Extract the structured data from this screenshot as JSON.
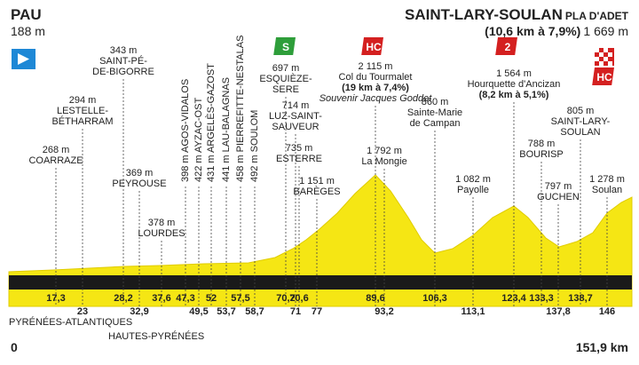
{
  "header": {
    "start": "PAU",
    "start_alt": "188 m",
    "finish": "SAINT-LARY-SOULAN",
    "finish_sub": "PLA D'ADET",
    "finish_climb": "(10,6 km à 7,9%)",
    "finish_alt": "1 669 m"
  },
  "badges": [
    "S",
    "HC",
    "2",
    "HC"
  ],
  "waypoints": [
    {
      "altitude": "268 m",
      "lines": [
        "COARRAZE"
      ],
      "km": "17,3"
    },
    {
      "altitude": "294 m",
      "lines": [
        "LESTELLE-",
        "BÉTHARRAM"
      ],
      "km": "23"
    },
    {
      "altitude": "343 m",
      "lines": [
        "SAINT-PÉ-",
        "DE-BIGORRE"
      ],
      "km": "28,2"
    },
    {
      "altitude": "369 m",
      "lines": [
        "PEYROUSE"
      ],
      "km": "32,9"
    },
    {
      "altitude": "378 m",
      "lines": [
        "LOURDES"
      ],
      "km": "37,6"
    },
    {
      "altitude": "398 m",
      "lines": [
        "AGOS-VIDALOS"
      ],
      "km": "47,3"
    },
    {
      "altitude": "422 m",
      "lines": [
        "AYZAC-OST"
      ],
      "km": "49,5"
    },
    {
      "altitude": "431 m",
      "lines": [
        "ARGELÈS-GAZOST"
      ],
      "km": "52"
    },
    {
      "altitude": "441 m",
      "lines": [
        "LAU-BALAGNAS"
      ],
      "km": "53,7"
    },
    {
      "altitude": "458 m",
      "lines": [
        "PIERREFITTE-NESTALAS"
      ],
      "km": "57,5"
    },
    {
      "altitude": "492 m",
      "lines": [
        "SOULOM"
      ],
      "km": "58,7"
    },
    {
      "altitude": "697 m",
      "lines": [
        "ESQUIÈZE-",
        "SERE"
      ],
      "km": "70,2"
    },
    {
      "altitude": "714 m",
      "lines": [
        "LUZ-SAINT-",
        "SAUVEUR"
      ],
      "km": "71"
    },
    {
      "altitude": "735 m",
      "lines": [
        "ESTERRE"
      ],
      "km": "70,6"
    },
    {
      "altitude": "1 151 m",
      "lines": [
        "BARÈGES"
      ],
      "km": "77"
    },
    {
      "altitude": "2 115 m",
      "lines": [
        "Col du Tourmalet",
        "(19 km à 7,4%)",
        "Souvenir Jacques Goddet"
      ],
      "km": "89,6"
    },
    {
      "altitude": "1 792 m",
      "lines": [
        "La Mongie"
      ],
      "km": "93,2"
    },
    {
      "altitude": "860 m",
      "lines": [
        "Sainte-Marie",
        "de Campan"
      ],
      "km": "106,3"
    },
    {
      "altitude": "1 082 m",
      "lines": [
        "Payolle"
      ],
      "km": "113,1"
    },
    {
      "altitude": "1 564 m",
      "lines": [
        "Hourquette d'Ancizan",
        "(8,2 km à 5,1%)"
      ],
      "km": "123,4"
    },
    {
      "altitude": "797 m",
      "lines": [
        "GUCHEN"
      ],
      "km": "137,8"
    },
    {
      "altitude": "788 m",
      "lines": [
        "BOURISP"
      ],
      "km": "133,3"
    },
    {
      "altitude": "805 m",
      "lines": [
        "SAINT-LARY-",
        "SOULAN"
      ],
      "km": "138,7"
    },
    {
      "altitude": "1 278 m",
      "lines": [
        "Soulan"
      ],
      "km": "146"
    }
  ],
  "footer": {
    "region1": "PYRÉNÉES-ATLANTIQUES",
    "region2": "HAUTES-PYRÉNÉES",
    "start_km": "0",
    "end_km": "151,9 km"
  }
}
